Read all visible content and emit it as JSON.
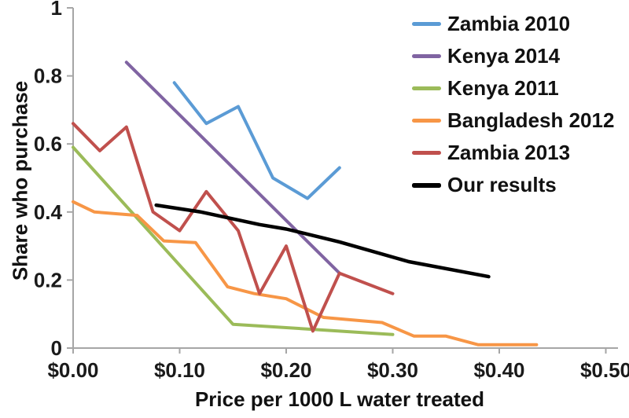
{
  "chart_data": {
    "type": "line",
    "title": "",
    "xlabel": "Price per 1000 L water treated",
    "ylabel": "Share who purchase",
    "xlim": [
      0,
      0.5
    ],
    "ylim": [
      0,
      1
    ],
    "grid": false,
    "legend_position": "top-right",
    "axis_color": "#a6a6a6",
    "text_color": "#1a1a1a",
    "background_color": "#ffffff",
    "x_ticks": [
      0,
      0.1,
      0.2,
      0.3,
      0.4,
      0.5
    ],
    "x_tick_labels": [
      "$0.00",
      "$0.10",
      "$0.20",
      "$0.30",
      "$0.40",
      "$0.50"
    ],
    "y_ticks": [
      0,
      0.2,
      0.4,
      0.6,
      0.8,
      1
    ],
    "y_tick_labels": [
      "0",
      "0.2",
      "0.4",
      "0.6",
      "0.8",
      "1"
    ],
    "series": [
      {
        "name": "Zambia 2010",
        "color": "#5b9bd5",
        "width": 4,
        "x": [
          0.095,
          0.125,
          0.155,
          0.1875,
          0.22,
          0.25
        ],
        "y": [
          0.78,
          0.66,
          0.71,
          0.5,
          0.44,
          0.53
        ]
      },
      {
        "name": "Kenya 2014",
        "color": "#8064a2",
        "width": 4,
        "x": [
          0.05,
          0.25
        ],
        "y": [
          0.84,
          0.22
        ]
      },
      {
        "name": "Kenya 2011",
        "color": "#9bbb59",
        "width": 4,
        "x": [
          0.0,
          0.15,
          0.3
        ],
        "y": [
          0.59,
          0.07,
          0.04
        ]
      },
      {
        "name": "Bangladesh 2012",
        "color": "#f79646",
        "width": 4,
        "x": [
          0.0,
          0.02,
          0.06,
          0.085,
          0.115,
          0.145,
          0.17,
          0.2,
          0.235,
          0.29,
          0.32,
          0.35,
          0.38,
          0.435
        ],
        "y": [
          0.43,
          0.4,
          0.39,
          0.315,
          0.31,
          0.18,
          0.16,
          0.145,
          0.09,
          0.075,
          0.035,
          0.035,
          0.01,
          0.01
        ]
      },
      {
        "name": "Zambia 2013",
        "color": "#c0504d",
        "width": 4,
        "x": [
          0.0,
          0.025,
          0.05,
          0.075,
          0.1,
          0.125,
          0.155,
          0.175,
          0.2,
          0.225,
          0.25,
          0.3
        ],
        "y": [
          0.66,
          0.58,
          0.65,
          0.4,
          0.345,
          0.46,
          0.345,
          0.16,
          0.3,
          0.05,
          0.22,
          0.16
        ]
      },
      {
        "name": "Our results",
        "color": "#000000",
        "width": 4.5,
        "x": [
          0.078,
          0.12,
          0.175,
          0.2,
          0.25,
          0.315,
          0.39
        ],
        "y": [
          0.42,
          0.4,
          0.363,
          0.35,
          0.312,
          0.254,
          0.21
        ]
      }
    ]
  }
}
